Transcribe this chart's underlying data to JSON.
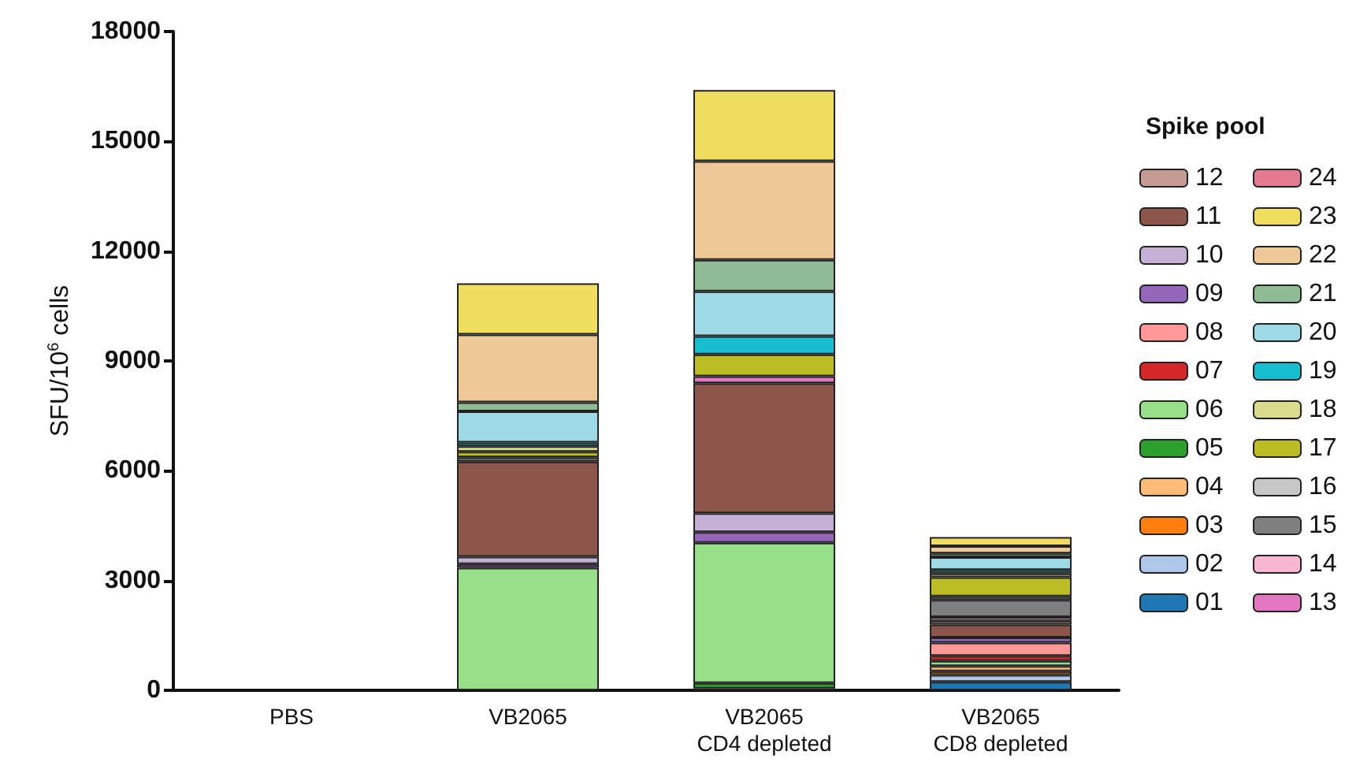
{
  "chart_data": {
    "type": "bar",
    "stacked": true,
    "ylabel": "SFU/10$^{6}$ cells",
    "legend_title": "Spike pool",
    "legend": "right",
    "grid": false,
    "categories": [
      "PBS",
      "VB2065",
      "VB2065\nCD4 depleted",
      "VB2065\nCD8 depleted"
    ],
    "ylim": [
      0,
      18000
    ],
    "yticks": [
      0,
      3000,
      6000,
      9000,
      12000,
      15000,
      18000
    ],
    "series": [
      {
        "name": "01",
        "color": "#1f77b4",
        "values": [
          0,
          0,
          50,
          230
        ]
      },
      {
        "name": "02",
        "color": "#aec7e8",
        "values": [
          0,
          0,
          0,
          190
        ]
      },
      {
        "name": "03",
        "color": "#ff7f0e",
        "values": [
          0,
          0,
          0,
          100
        ]
      },
      {
        "name": "04",
        "color": "#ffbb78",
        "values": [
          0,
          0,
          0,
          140
        ]
      },
      {
        "name": "05",
        "color": "#2ca02c",
        "values": [
          0,
          0,
          150,
          0
        ]
      },
      {
        "name": "06",
        "color": "#98df8a",
        "values": [
          0,
          3350,
          3830,
          140
        ]
      },
      {
        "name": "07",
        "color": "#d62728",
        "values": [
          0,
          0,
          0,
          140
        ]
      },
      {
        "name": "08",
        "color": "#ff9896",
        "values": [
          0,
          0,
          0,
          360
        ]
      },
      {
        "name": "09",
        "color": "#9467bd",
        "values": [
          0,
          100,
          290,
          140
        ]
      },
      {
        "name": "10",
        "color": "#c5b0d5",
        "values": [
          0,
          200,
          520,
          0
        ]
      },
      {
        "name": "11",
        "color": "#8c564b",
        "values": [
          0,
          2600,
          3550,
          360
        ]
      },
      {
        "name": "12",
        "color": "#c49c94",
        "values": [
          0,
          0,
          0,
          100
        ]
      },
      {
        "name": "13",
        "color": "#e377c2",
        "values": [
          0,
          0,
          190,
          0
        ]
      },
      {
        "name": "14",
        "color": "#f7b6d2",
        "values": [
          0,
          0,
          0,
          100
        ]
      },
      {
        "name": "15",
        "color": "#7f7f7f",
        "values": [
          0,
          120,
          0,
          470
        ]
      },
      {
        "name": "16",
        "color": "#c7c7c7",
        "values": [
          0,
          0,
          0,
          100
        ]
      },
      {
        "name": "17",
        "color": "#bcbd22",
        "values": [
          0,
          150,
          600,
          520
        ]
      },
      {
        "name": "18",
        "color": "#dbdb8d",
        "values": [
          0,
          150,
          0,
          100
        ]
      },
      {
        "name": "19",
        "color": "#17becf",
        "values": [
          0,
          100,
          500,
          100
        ]
      },
      {
        "name": "20",
        "color": "#9edae5",
        "values": [
          0,
          850,
          1220,
          350
        ]
      },
      {
        "name": "21",
        "color": "#8fbc94",
        "values": [
          0,
          250,
          860,
          100
        ]
      },
      {
        "name": "22",
        "color": "#ecc995",
        "values": [
          0,
          1850,
          2700,
          200
        ]
      },
      {
        "name": "23",
        "color": "#efdd5f",
        "values": [
          0,
          1400,
          1940,
          250
        ]
      },
      {
        "name": "24",
        "color": "#e27b8f",
        "values": [
          0,
          0,
          0,
          0
        ]
      }
    ]
  }
}
